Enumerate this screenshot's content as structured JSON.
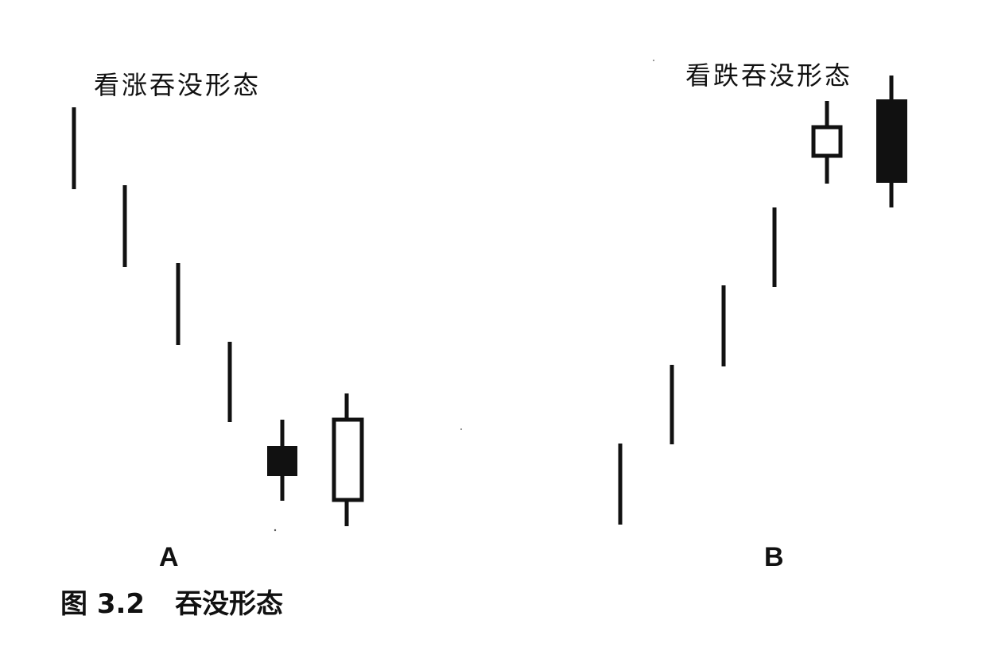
{
  "diagram": {
    "panel_a": {
      "title": "看涨吞没形态",
      "letter": "A"
    },
    "panel_b": {
      "title": "看跌吞没形态",
      "letter": "B"
    }
  },
  "caption": {
    "number": "图 3.2",
    "text": "吞没形态"
  },
  "colors": {
    "ink": "#111111",
    "background": "#ffffff"
  }
}
